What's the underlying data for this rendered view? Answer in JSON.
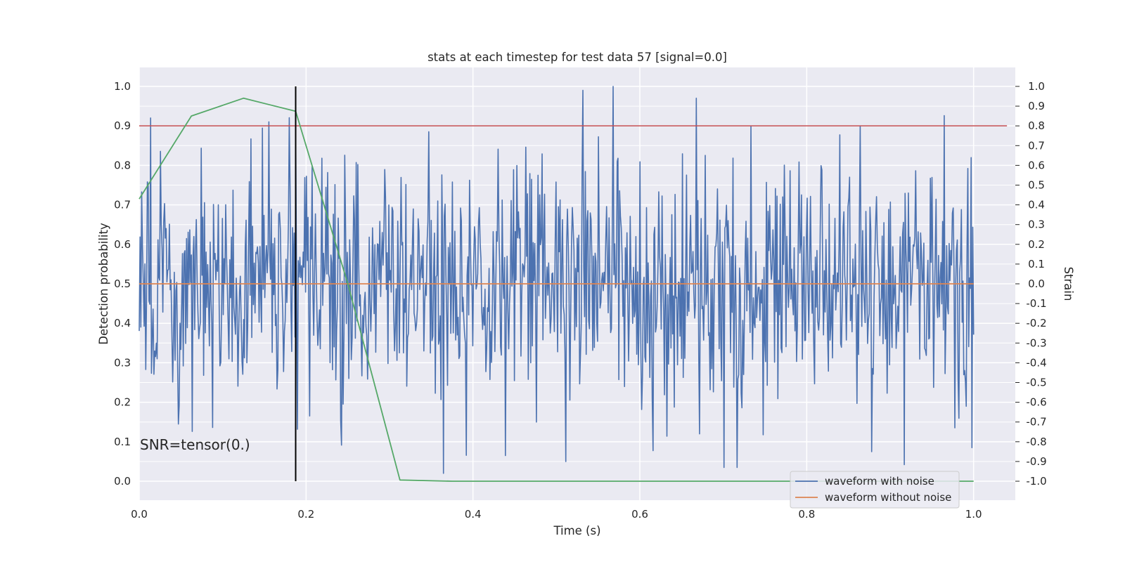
{
  "chart_data": {
    "type": "line",
    "title": "stats at each timestep for test data 57 [signal=0.0]",
    "xlabel": "Time (s)",
    "ylabel_left": "Detection probability",
    "ylabel_right": "Strain",
    "xlim": [
      0.0,
      1.05
    ],
    "ylim_left": [
      -0.048,
      1.048
    ],
    "ylim_right": [
      -1.096,
      1.096
    ],
    "x_ticks": [
      "0.0",
      "0.2",
      "0.4",
      "0.6",
      "0.8",
      "1.0"
    ],
    "y_ticks_left": [
      "0.0",
      "0.1",
      "0.2",
      "0.3",
      "0.4",
      "0.5",
      "0.6",
      "0.7",
      "0.8",
      "0.9",
      "1.0"
    ],
    "y_ticks_right": [
      "-1.0",
      "-0.9",
      "-0.8",
      "-0.7",
      "-0.6",
      "-0.5",
      "-0.4",
      "-0.3",
      "-0.2",
      "-0.1",
      "0.0",
      "0.1",
      "0.2",
      "0.3",
      "0.4",
      "0.5",
      "0.6",
      "0.7",
      "0.8",
      "0.9",
      "1.0"
    ],
    "grid": true,
    "legend_position": "lower-right",
    "annotation": "SNR=tensor(0.)",
    "detection_probability": {
      "axis": "left",
      "color": "#55a868",
      "x": [
        0.0,
        0.0625,
        0.125,
        0.1875,
        0.25,
        0.3125,
        0.375,
        0.4375,
        0.5,
        0.5625,
        0.625,
        0.6875,
        0.75,
        0.8125,
        0.875,
        0.9375,
        1.0
      ],
      "y": [
        0.715,
        0.925,
        0.97,
        0.937,
        0.5,
        0.003,
        0.0,
        0.0,
        0.0,
        0.0,
        0.0,
        0.0,
        0.0,
        0.0,
        0.0,
        0.0,
        0.0
      ]
    },
    "threshold": {
      "axis": "left",
      "value": 0.9,
      "color": "#c44e52",
      "x_range": [
        0.0,
        1.04
      ]
    },
    "marker_line": {
      "x": 0.1875,
      "y_range": [
        0.0,
        1.0
      ],
      "color": "#000000"
    },
    "series": [
      {
        "name": "waveform with noise",
        "axis": "right",
        "color": "#4c72b0",
        "x_range": [
          0.0,
          1.0
        ],
        "n_samples": 1024,
        "std": 0.32,
        "peaks": [
          {
            "x": 0.014,
            "y": 0.84
          },
          {
            "x": 0.181,
            "y": 0.47
          },
          {
            "x": 0.347,
            "y": 0.77
          },
          {
            "x": 0.532,
            "y": 0.98
          },
          {
            "x": 0.568,
            "y": 1.0
          },
          {
            "x": 0.668,
            "y": 0.94
          },
          {
            "x": 0.733,
            "y": 0.8
          },
          {
            "x": 0.864,
            "y": 0.8
          },
          {
            "x": 0.365,
            "y": -0.96
          },
          {
            "x": 0.878,
            "y": -0.85
          },
          {
            "x": 0.998,
            "y": -0.83
          },
          {
            "x": 0.672,
            "y": -0.76
          }
        ]
      },
      {
        "name": "waveform without noise",
        "axis": "right",
        "color": "#dd8452",
        "x_range": [
          0.0,
          1.0
        ],
        "value": 0.0
      }
    ]
  }
}
